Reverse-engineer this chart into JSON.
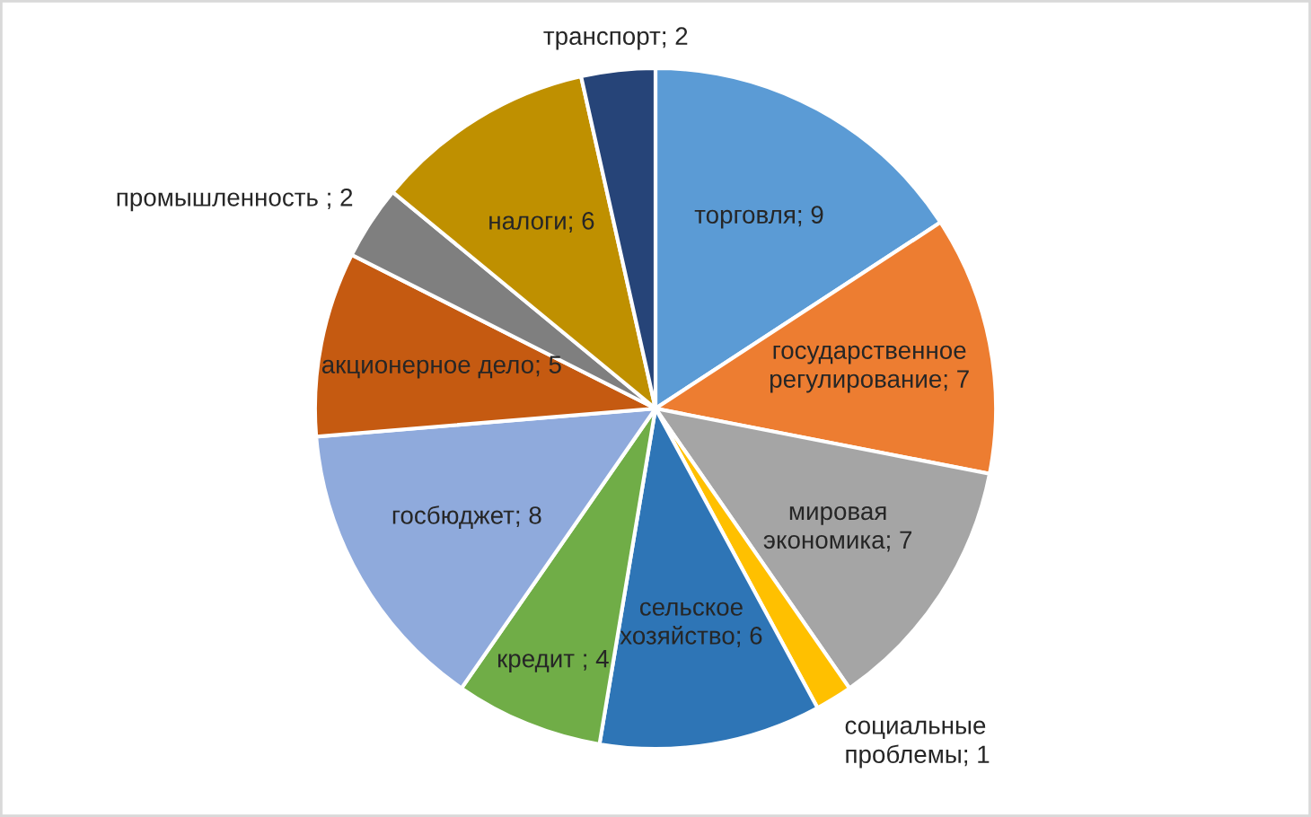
{
  "chart_data": {
    "type": "pie",
    "categories": [
      "торговля; 9",
      "государственное регулирование; 7",
      "мировая экономика; 7",
      "социальные проблемы; 1",
      "сельское хозяйство; 6",
      "кредит ; 4",
      "госбюджет; 8",
      "акционерное дело; 5",
      "промышленность ; 2",
      "налоги; 6",
      "транспорт; 2"
    ],
    "values": [
      9,
      7,
      7,
      1,
      6,
      4,
      8,
      5,
      2,
      6,
      2
    ],
    "colors": [
      "#5b9bd5",
      "#ed7d31",
      "#a5a5a5",
      "#ffc000",
      "#2e75b6",
      "#70ad47",
      "#8faadc",
      "#c55a11",
      "#7f7f7f",
      "#bf9000",
      "#264478"
    ]
  }
}
